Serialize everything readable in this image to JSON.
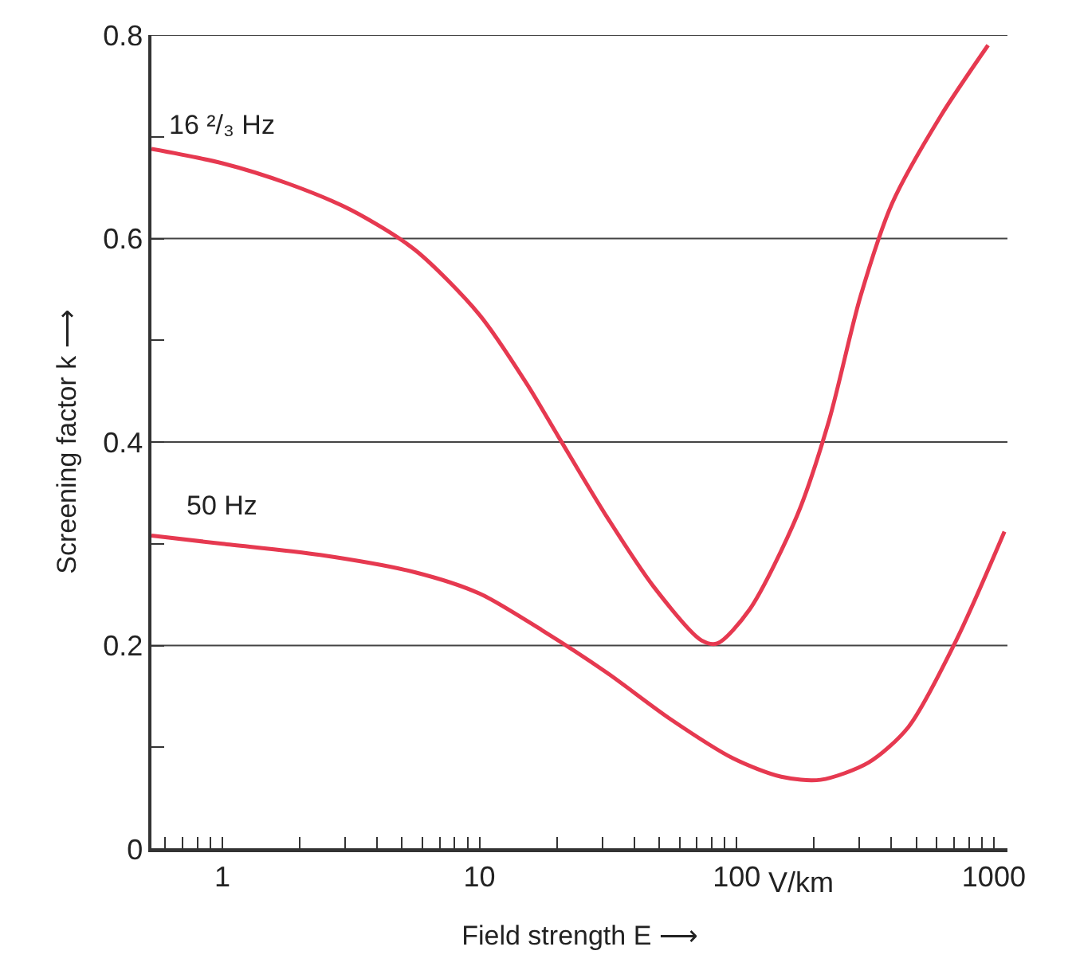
{
  "chart_data": {
    "type": "line",
    "xlabel": "Field strength E ⟶",
    "ylabel": "Screening factor k ⟶",
    "log": "x",
    "grid": "y",
    "legend": false,
    "marker": "none",
    "line_style": "solid",
    "annotations": [
      "V/km"
    ],
    "xlim": [
      0.53,
      1130
    ],
    "ylim": [
      0,
      0.8
    ],
    "xticks": [
      {
        "value": 0.6,
        "label": null
      },
      {
        "value": 0.7,
        "label": null
      },
      {
        "value": 0.8,
        "label": null
      },
      {
        "value": 0.9,
        "label": null
      },
      1,
      {
        "value": 2,
        "label": null
      },
      {
        "value": 3,
        "label": null
      },
      {
        "value": 4,
        "label": null
      },
      {
        "value": 5,
        "label": null
      },
      {
        "value": 6,
        "label": null
      },
      {
        "value": 7,
        "label": null
      },
      {
        "value": 8,
        "label": null
      },
      {
        "value": 9,
        "label": null
      },
      10,
      {
        "value": 20,
        "label": null
      },
      {
        "value": 30,
        "label": null
      },
      {
        "value": 40,
        "label": null
      },
      {
        "value": 50,
        "label": null
      },
      {
        "value": 60,
        "label": null
      },
      {
        "value": 70,
        "label": null
      },
      {
        "value": 80,
        "label": null
      },
      {
        "value": 90,
        "label": null
      },
      100,
      {
        "value": 200,
        "label": null
      },
      {
        "value": 300,
        "label": null
      },
      {
        "value": 400,
        "label": null
      },
      {
        "value": 500,
        "label": null
      },
      {
        "value": 600,
        "label": null
      },
      {
        "value": 700,
        "label": null
      },
      {
        "value": 800,
        "label": null
      },
      {
        "value": 900,
        "label": null
      },
      1000
    ],
    "yticks": [
      0,
      {
        "value": 0.1,
        "label": null
      },
      0.2,
      {
        "value": 0.3,
        "label": null
      },
      0.4,
      {
        "value": 0.5,
        "label": null
      },
      0.6,
      {
        "value": 0.7,
        "label": null
      },
      0.8
    ],
    "series": [
      {
        "name": "16 ²/₃ Hz",
        "color": "#e63950",
        "x": [
          0.53,
          1,
          1.8,
          3.17,
          5.6,
          10,
          15.2,
          20.3,
          31,
          47.5,
          73,
          84,
          112,
          172,
          228,
          303,
          403,
          620,
          950
        ],
        "values": [
          0.688,
          0.674,
          0.654,
          0.628,
          0.589,
          0.525,
          0.458,
          0.405,
          0.328,
          0.258,
          0.205,
          0.202,
          0.235,
          0.328,
          0.42,
          0.543,
          0.635,
          0.72,
          0.79
        ]
      },
      {
        "name": "50 Hz",
        "color": "#e63950",
        "x": [
          0.53,
          1,
          2.4,
          5.6,
          10,
          17.5,
          31,
          55,
          97,
          149,
          212,
          326,
          466,
          714,
          1100
        ],
        "values": [
          0.308,
          0.3,
          0.289,
          0.272,
          0.251,
          0.215,
          0.174,
          0.128,
          0.089,
          0.071,
          0.068,
          0.085,
          0.12,
          0.205,
          0.312
        ]
      }
    ]
  }
}
